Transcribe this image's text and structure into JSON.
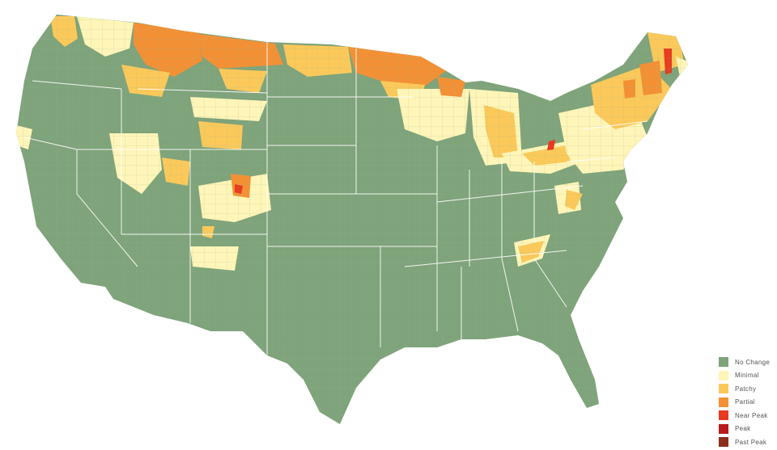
{
  "legend": {
    "items": [
      {
        "label": "No Change",
        "color": "#7fa37a"
      },
      {
        "label": "Minimal",
        "color": "#fff5b8"
      },
      {
        "label": "Patchy",
        "color": "#fbc95a"
      },
      {
        "label": "Partial",
        "color": "#f39035"
      },
      {
        "label": "Near Peak",
        "color": "#e83a1f"
      },
      {
        "label": "Peak",
        "color": "#b81b1b"
      },
      {
        "label": "Past Peak",
        "color": "#8c2e1a"
      }
    ]
  },
  "colors": {
    "state_border": "#ffffff",
    "county_line": "#93b48f"
  }
}
